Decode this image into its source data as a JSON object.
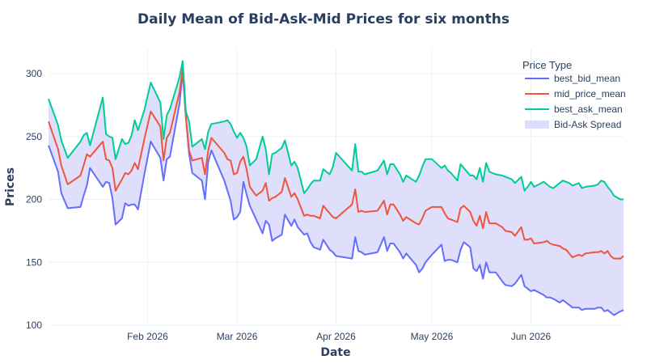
{
  "chart_data": {
    "type": "line",
    "title": "Daily Mean of Bid-Ask-Mid Prices for six months",
    "xlabel": "Date",
    "ylabel": "Prices",
    "x_range": [
      "2026-01-01",
      "2026-06-30"
    ],
    "ylim": [
      100,
      320
    ],
    "x_ticks": [
      {
        "date": "2026-02-01",
        "label": "Feb 2026"
      },
      {
        "date": "2026-03-01",
        "label": "Mar 2026"
      },
      {
        "date": "2026-04-01",
        "label": "Apr 2026"
      },
      {
        "date": "2026-05-01",
        "label": "May 2026"
      },
      {
        "date": "2026-06-01",
        "label": "Jun 2026"
      }
    ],
    "y_ticks": [
      100,
      150,
      200,
      250,
      300
    ],
    "grid": true,
    "legend": {
      "title": "Price Type",
      "position": "top-right",
      "entries": [
        "best_bid_mean",
        "mid_price_mean",
        "best_ask_mean",
        "Bid-Ask Spread"
      ]
    },
    "colors": {
      "best_bid_mean": "#636efa",
      "mid_price_mean": "#ef553b",
      "best_ask_mean": "#00cc96",
      "spread_fill": "#dcdcfc"
    },
    "x": [
      "2026-01-01",
      "2026-01-04",
      "2026-01-05",
      "2026-01-07",
      "2026-01-11",
      "2026-01-12",
      "2026-01-13",
      "2026-01-14",
      "2026-01-18",
      "2026-01-19",
      "2026-01-20",
      "2026-01-21",
      "2026-01-22",
      "2026-01-24",
      "2026-01-25",
      "2026-01-26",
      "2026-01-27",
      "2026-01-28",
      "2026-01-29",
      "2026-01-31",
      "2026-02-02",
      "2026-02-05",
      "2026-02-06",
      "2026-02-07",
      "2026-02-08",
      "2026-02-11",
      "2026-02-12",
      "2026-02-13",
      "2026-02-14",
      "2026-02-15",
      "2026-02-18",
      "2026-02-19",
      "2026-02-20",
      "2026-02-21",
      "2026-02-25",
      "2026-02-26",
      "2026-02-27",
      "2026-02-28",
      "2026-03-01",
      "2026-03-02",
      "2026-03-03",
      "2026-03-04",
      "2026-03-05",
      "2026-03-07",
      "2026-03-09",
      "2026-03-10",
      "2026-03-11",
      "2026-03-12",
      "2026-03-13",
      "2026-03-15",
      "2026-03-16",
      "2026-03-18",
      "2026-03-19",
      "2026-03-20",
      "2026-03-22",
      "2026-03-23",
      "2026-03-24",
      "2026-03-25",
      "2026-03-27",
      "2026-03-28",
      "2026-03-30",
      "2026-03-31",
      "2026-04-01",
      "2026-04-06",
      "2026-04-07",
      "2026-04-08",
      "2026-04-09",
      "2026-04-10",
      "2026-04-14",
      "2026-04-16",
      "2026-04-17",
      "2026-04-18",
      "2026-04-19",
      "2026-04-21",
      "2026-04-22",
      "2026-04-23",
      "2026-04-26",
      "2026-04-27",
      "2026-04-28",
      "2026-04-29",
      "2026-05-01",
      "2026-05-04",
      "2026-05-05",
      "2026-05-06",
      "2026-05-07",
      "2026-05-08",
      "2026-05-09",
      "2026-05-10",
      "2026-05-11",
      "2026-05-13",
      "2026-05-14",
      "2026-05-15",
      "2026-05-16",
      "2026-05-17",
      "2026-05-18",
      "2026-05-19",
      "2026-05-21",
      "2026-05-23",
      "2026-05-24",
      "2026-05-26",
      "2026-05-27",
      "2026-05-29",
      "2026-05-30",
      "2026-05-31",
      "2026-06-01",
      "2026-06-02",
      "2026-06-05",
      "2026-06-06",
      "2026-06-07",
      "2026-06-08",
      "2026-06-10",
      "2026-06-11",
      "2026-06-12",
      "2026-06-13",
      "2026-06-14",
      "2026-06-16",
      "2026-06-17",
      "2026-06-18",
      "2026-06-21",
      "2026-06-22",
      "2026-06-23",
      "2026-06-24",
      "2026-06-25",
      "2026-06-26",
      "2026-06-27",
      "2026-06-29",
      "2026-06-30"
    ],
    "series": [
      {
        "name": "best_bid_mean",
        "values": [
          243,
          222,
          205,
          193,
          194,
          203,
          211,
          225,
          210,
          214,
          213,
          201,
          180,
          185,
          197,
          195,
          196,
          196,
          192,
          220,
          246,
          233,
          215,
          232,
          234,
          276,
          301,
          265,
          236,
          221,
          215,
          200,
          230,
          239,
          215,
          207,
          199,
          184,
          186,
          190,
          214,
          204,
          195,
          184,
          173,
          183,
          180,
          167,
          169,
          172,
          188,
          179,
          184,
          178,
          172,
          173,
          166,
          162,
          160,
          168,
          160,
          158,
          155,
          153,
          170,
          159,
          158,
          156,
          158,
          170,
          159,
          165,
          165,
          158,
          153,
          157,
          148,
          142,
          145,
          150,
          156,
          164,
          151,
          152,
          152,
          151,
          150,
          160,
          166,
          162,
          145,
          143,
          148,
          137,
          150,
          142,
          142,
          135,
          132,
          131,
          133,
          140,
          131,
          129,
          127,
          128,
          124,
          122,
          122,
          121,
          118,
          120,
          118,
          116,
          114,
          114,
          112,
          113,
          113,
          114,
          114,
          111,
          112,
          110,
          108,
          111,
          112
        ]
      },
      {
        "name": "mid_price_mean",
        "values": [
          262,
          240,
          227,
          212,
          219,
          227,
          236,
          234,
          246,
          232,
          231,
          225,
          207,
          216,
          221,
          220,
          223,
          229,
          224,
          248,
          270,
          258,
          231,
          249,
          253,
          285,
          304,
          266,
          239,
          231,
          233,
          220,
          239,
          249,
          237,
          232,
          231,
          220,
          221,
          230,
          234,
          224,
          210,
          203,
          207,
          213,
          199,
          201,
          202,
          206,
          217,
          202,
          205,
          200,
          187,
          188,
          187,
          187,
          185,
          195,
          189,
          186,
          185,
          196,
          208,
          190,
          191,
          190,
          191,
          199,
          188,
          196,
          196,
          188,
          183,
          186,
          181,
          180,
          185,
          191,
          194,
          194,
          189,
          185,
          184,
          183,
          182,
          193,
          195,
          190,
          183,
          179,
          187,
          177,
          190,
          181,
          181,
          178,
          175,
          174,
          171,
          178,
          168,
          168,
          169,
          165,
          166,
          167,
          165,
          164,
          163,
          161,
          160,
          157,
          154,
          156,
          155,
          157,
          158,
          158,
          159,
          157,
          159,
          155,
          153,
          153,
          155
        ]
      },
      {
        "name": "best_ask_mean",
        "values": [
          280,
          259,
          247,
          233,
          246,
          251,
          253,
          243,
          281,
          252,
          250,
          249,
          232,
          248,
          244,
          245,
          251,
          263,
          255,
          271,
          293,
          277,
          248,
          267,
          272,
          297,
          310,
          270,
          262,
          242,
          248,
          240,
          254,
          260,
          262,
          263,
          260,
          254,
          249,
          253,
          249,
          242,
          227,
          232,
          250,
          240,
          220,
          236,
          237,
          241,
          247,
          227,
          230,
          225,
          205,
          208,
          212,
          215,
          215,
          224,
          220,
          226,
          237,
          223,
          244,
          222,
          222,
          220,
          223,
          231,
          220,
          228,
          228,
          220,
          214,
          219,
          214,
          219,
          226,
          232,
          232,
          225,
          227,
          223,
          221,
          218,
          215,
          228,
          225,
          219,
          219,
          216,
          225,
          214,
          229,
          222,
          220,
          219,
          218,
          216,
          213,
          218,
          207,
          210,
          214,
          210,
          214,
          212,
          210,
          209,
          213,
          215,
          214,
          213,
          211,
          213,
          209,
          210,
          211,
          212,
          215,
          214,
          210,
          207,
          203,
          200,
          200
        ]
      }
    ]
  }
}
